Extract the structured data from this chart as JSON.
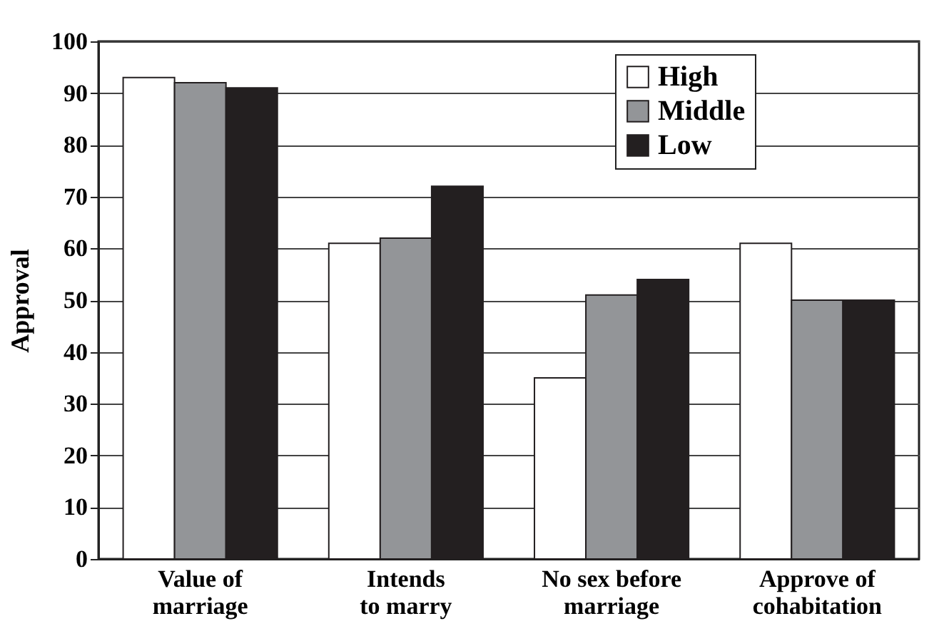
{
  "chart_data": {
    "type": "bar",
    "ylabel": "Approval",
    "categories": [
      "Value of\nmarriage",
      "Intends\nto marry",
      "No sex before\nmarriage",
      "Approve of\ncohabitation"
    ],
    "series": [
      {
        "name": "High",
        "color": "#ffffff",
        "values": [
          93,
          61,
          35,
          61
        ]
      },
      {
        "name": "Middle",
        "color": "#939598",
        "values": [
          92,
          62,
          51,
          50
        ]
      },
      {
        "name": "Low",
        "color": "#231f20",
        "values": [
          91,
          72,
          54,
          50
        ]
      }
    ],
    "ylim": [
      0,
      100
    ],
    "yticks": [
      0,
      10,
      20,
      30,
      40,
      50,
      60,
      70,
      80,
      90,
      100
    ],
    "grid": "y",
    "legend": "top right"
  }
}
